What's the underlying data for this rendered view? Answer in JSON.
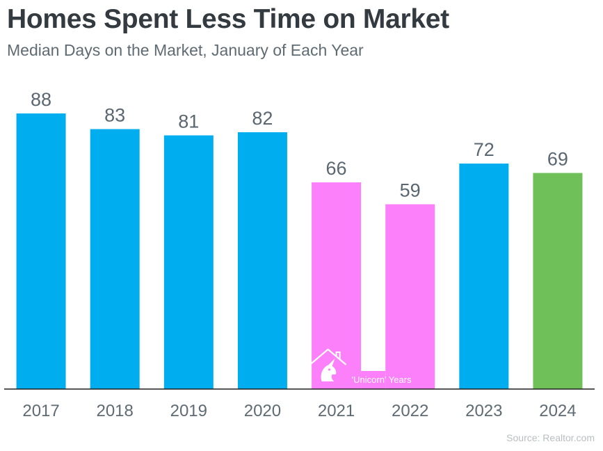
{
  "header": {
    "title": "Homes Spent Less Time on Market",
    "subtitle": "Median Days on the Market, January of Each Year"
  },
  "chart_data": {
    "type": "bar",
    "title": "Homes Spent Less Time on Market",
    "subtitle": "Median Days on the Market, January of Each Year",
    "xlabel": "",
    "ylabel": "",
    "categories": [
      "2017",
      "2018",
      "2019",
      "2020",
      "2021",
      "2022",
      "2023",
      "2024"
    ],
    "values": [
      88,
      83,
      81,
      82,
      66,
      59,
      72,
      69
    ],
    "ylim": [
      0,
      100
    ],
    "grid": false,
    "data_labels": true,
    "colors": [
      "#00aeef",
      "#00aeef",
      "#00aeef",
      "#00aeef",
      "#fd80fb",
      "#fd80fb",
      "#00aeef",
      "#70c05a"
    ],
    "annotation": {
      "text": "'Unicorn' Years",
      "icon": "unicorn-house-icon",
      "categories": [
        "2021",
        "2022"
      ]
    }
  },
  "footer": {
    "source": "Source: Realtor.com"
  }
}
